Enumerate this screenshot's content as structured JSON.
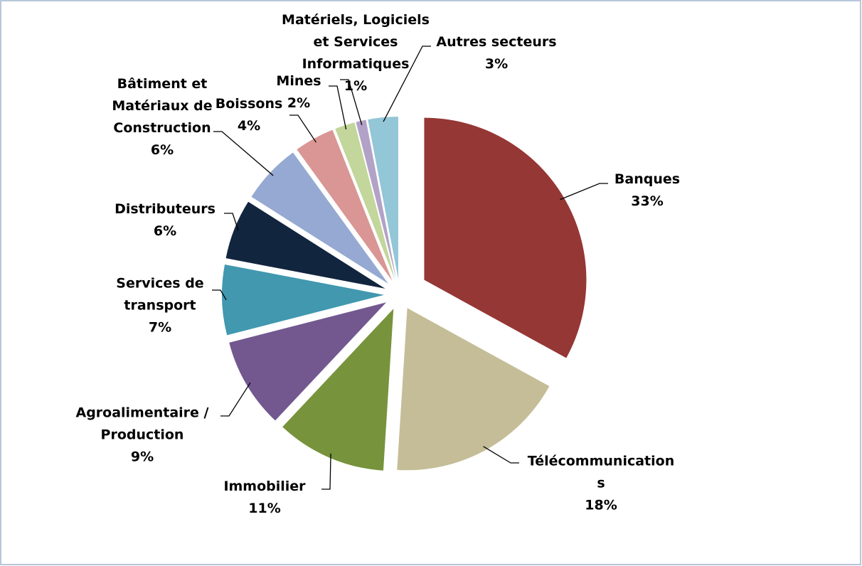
{
  "chart_data": {
    "type": "pie",
    "categories": [
      "Banques",
      "Télécommunications",
      "Immobilier",
      "Agroalimentaire / Production",
      "Services de transport",
      "Distributeurs",
      "Bâtiment et Matériaux de Construction",
      "Boissons",
      "Mines",
      "Matériels, Logiciels et Services Informatiques",
      "Autres secteurs"
    ],
    "values": [
      33,
      18,
      11,
      9,
      7,
      6,
      6,
      4,
      2,
      1,
      3
    ],
    "value_labels": [
      "33%",
      "18%",
      "11%",
      "9%",
      "7%",
      "6%",
      "6%",
      "4%",
      "2%",
      "1%",
      "3%"
    ],
    "colors": [
      "#953735",
      "#c4bd97",
      "#77933c",
      "#72588f",
      "#4198af",
      "#12253f",
      "#95a9d2",
      "#d99694",
      "#c3d69b",
      "#b3a2c7",
      "#93c6d6"
    ]
  }
}
